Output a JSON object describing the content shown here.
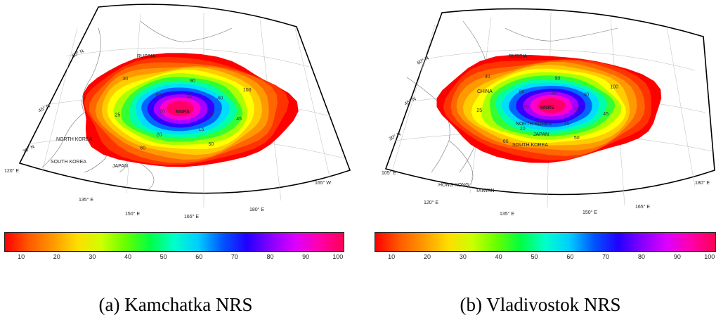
{
  "colorbar": {
    "gradient": [
      "#ff0000",
      "#ff5a00",
      "#ff9900",
      "#ffdd00",
      "#ccff00",
      "#66ff00",
      "#00ff44",
      "#00ffcc",
      "#00ccff",
      "#0055ff",
      "#2200ff",
      "#8800ff",
      "#dd00ff",
      "#ff00aa",
      "#ff0055"
    ],
    "ticks": [
      "10",
      "20",
      "30",
      "40",
      "50",
      "60",
      "70",
      "80",
      "90",
      "100"
    ]
  },
  "panels": [
    {
      "caption": "(a) Kamchatka NRS",
      "center_label": "NNRS",
      "place_labels": [
        "RUSSIA",
        "NORTH KOREA",
        "SOUTH KOREA",
        "JAPAN"
      ],
      "lat_labels": [
        "60° N",
        "45° N",
        "30° N"
      ],
      "lon_labels": [
        "120° E",
        "135° E",
        "150° E",
        "165° E",
        "180° E",
        "165° W"
      ],
      "contour_labels": [
        "10",
        "15",
        "20",
        "25",
        "30",
        "35",
        "40",
        "45",
        "50",
        "60",
        "70",
        "80",
        "90",
        "100"
      ]
    },
    {
      "caption": "(b) Vladivostok NRS",
      "center_label": "NNRS",
      "place_labels": [
        "RUSSIA",
        "CHINA",
        "NORTH KOREA",
        "SOUTH KOREA",
        "JAPAN",
        "TAIWAN",
        "HONG KONG"
      ],
      "lat_labels": [
        "60° N",
        "45° N",
        "30° N"
      ],
      "lon_labels": [
        "105° E",
        "120° E",
        "135° E",
        "150° E",
        "165° E",
        "180° E"
      ],
      "contour_labels": [
        "10",
        "15",
        "20",
        "25",
        "30",
        "35",
        "40",
        "45",
        "50",
        "60",
        "70",
        "80",
        "90",
        "100"
      ]
    }
  ]
}
